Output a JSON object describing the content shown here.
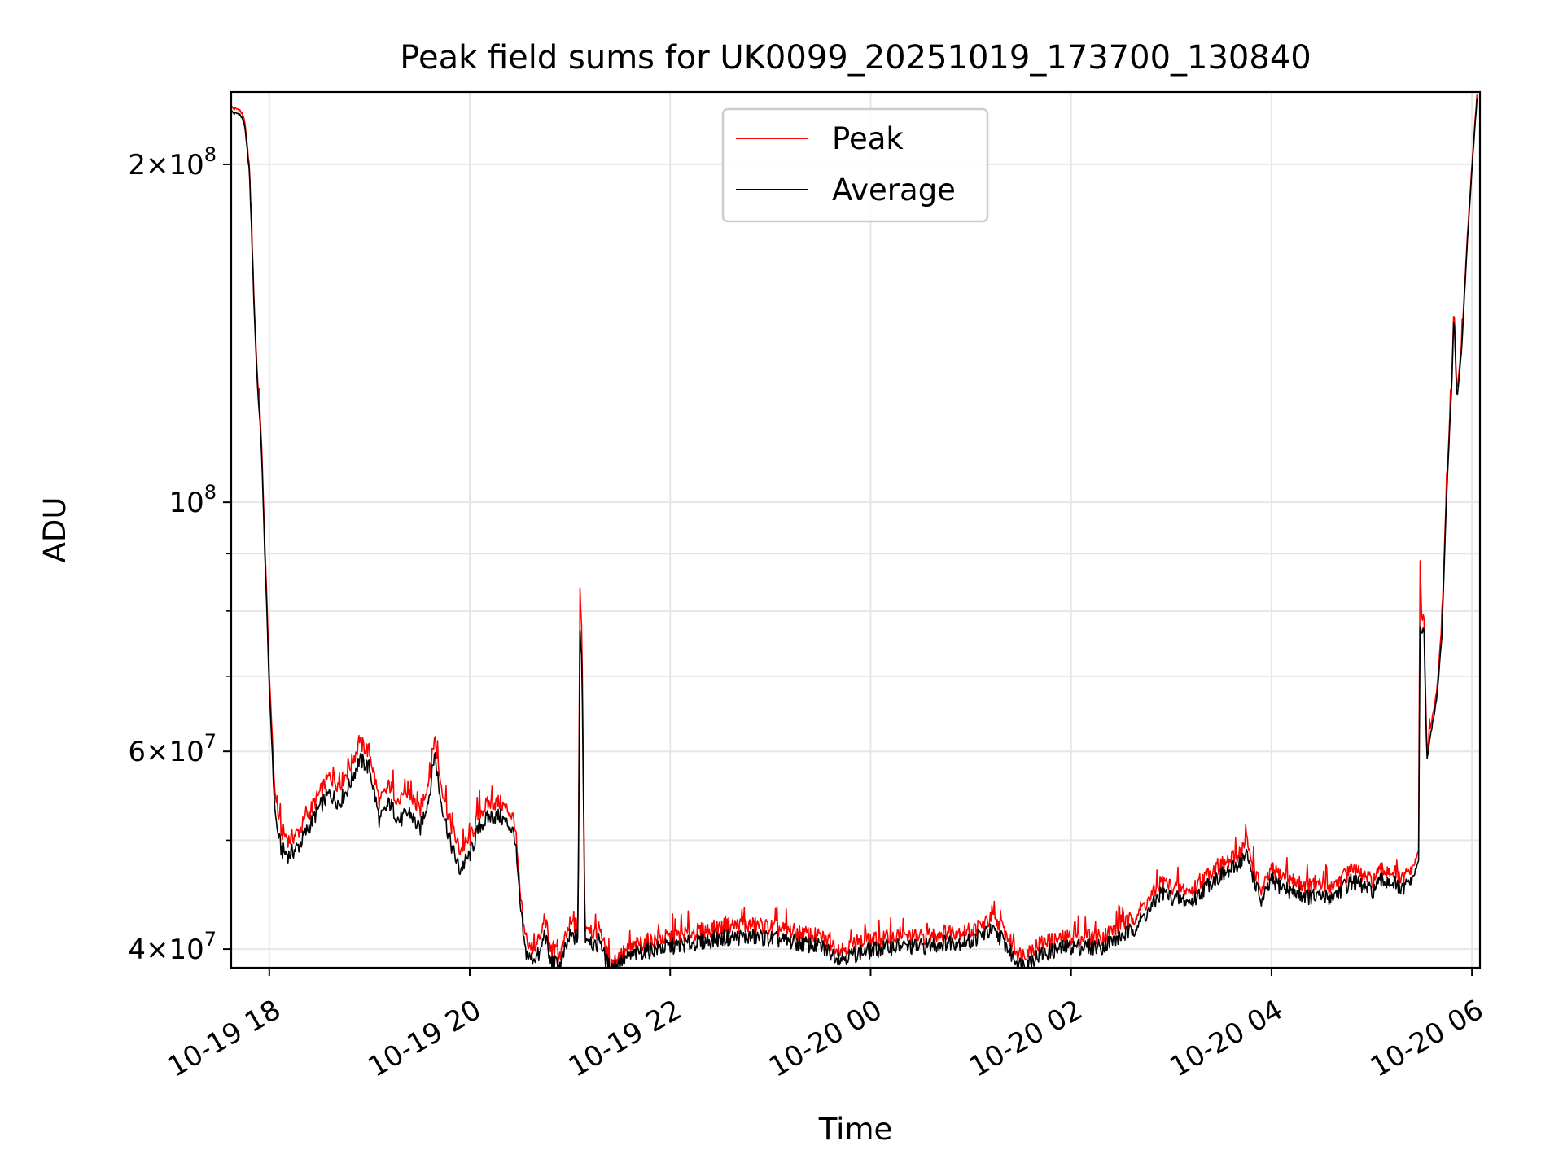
{
  "chart_data": {
    "type": "line",
    "title": "Peak field sums for UK0099_20251019_173700_130840",
    "xlabel": "Time",
    "ylabel": "ADU",
    "yscale": "log",
    "ylim": [
      38500000,
      232000000
    ],
    "xlim_hours": [
      17.62,
      30.08
    ],
    "x_unit": "hours since 2025-10-19 00:00",
    "grid": true,
    "legend_position": "upper-center",
    "x_ticks": [
      {
        "hour": 18,
        "label": "10-19 18"
      },
      {
        "hour": 20,
        "label": "10-19 20"
      },
      {
        "hour": 22,
        "label": "10-19 22"
      },
      {
        "hour": 24,
        "label": "10-20 00"
      },
      {
        "hour": 26,
        "label": "10-20 02"
      },
      {
        "hour": 28,
        "label": "10-20 04"
      },
      {
        "hour": 30,
        "label": "10-20 06"
      }
    ],
    "y_major_ticks": [
      {
        "value": 40000000,
        "base": "4",
        "exp": "7"
      },
      {
        "value": 60000000,
        "base": "6",
        "exp": "7"
      },
      {
        "value": 100000000,
        "base": "",
        "exp": "8"
      },
      {
        "value": 200000000,
        "base": "2",
        "exp": "8"
      }
    ],
    "y_minor_ticks": [
      50000000,
      70000000,
      80000000,
      90000000
    ],
    "series": [
      {
        "name": "Peak",
        "color": "#ff0000",
        "x": [
          17.62,
          17.65,
          17.7,
          17.75,
          17.8,
          17.82,
          17.85,
          17.88,
          17.92,
          17.95,
          17.98,
          18.0,
          18.03,
          18.05,
          18.08,
          18.12,
          18.2,
          18.3,
          18.4,
          18.5,
          18.6,
          18.7,
          18.8,
          18.9,
          19.0,
          19.05,
          19.1,
          19.2,
          19.3,
          19.4,
          19.5,
          19.6,
          19.65,
          19.7,
          19.8,
          19.9,
          20.0,
          20.1,
          20.2,
          20.3,
          20.4,
          20.45,
          20.5,
          20.55,
          20.6,
          20.7,
          20.75,
          20.8,
          20.9,
          21.0,
          21.08,
          21.1,
          21.12,
          21.15,
          21.2,
          21.25,
          21.3,
          21.35,
          21.4,
          21.5,
          21.7,
          22.0,
          22.3,
          22.6,
          22.9,
          23.2,
          23.5,
          23.7,
          23.9,
          24.2,
          24.5,
          24.8,
          25.0,
          25.1,
          25.2,
          25.3,
          25.4,
          25.5,
          25.7,
          26.0,
          26.3,
          26.6,
          26.8,
          26.9,
          27.0,
          27.2,
          27.4,
          27.6,
          27.7,
          27.75,
          27.8,
          27.9,
          28.0,
          28.2,
          28.4,
          28.6,
          28.8,
          29.0,
          29.1,
          29.2,
          29.3,
          29.42,
          29.47,
          29.48,
          29.5,
          29.52,
          29.55,
          29.6,
          29.65,
          29.7,
          29.75,
          29.8,
          29.82,
          29.85,
          29.9,
          29.95,
          30.0,
          30.05
        ],
        "y": [
          225000000,
          224000000,
          224000000,
          220000000,
          200000000,
          180000000,
          150000000,
          130000000,
          115000000,
          95000000,
          80000000,
          70000000,
          62000000,
          56000000,
          53000000,
          51000000,
          50000000,
          51000000,
          53000000,
          55000000,
          57000000,
          56000000,
          58000000,
          61000000,
          60000000,
          57000000,
          54000000,
          56000000,
          54000000,
          55000000,
          53000000,
          57000000,
          62000000,
          57000000,
          52000000,
          49000000,
          50000000,
          53000000,
          54000000,
          54000000,
          53000000,
          52000000,
          45000000,
          41000000,
          40000000,
          40500000,
          43000000,
          40000000,
          39500000,
          42000000,
          42000000,
          83000000,
          76000000,
          42000000,
          42000000,
          41000000,
          42000000,
          40000000,
          38800000,
          39500000,
          40500000,
          41000000,
          41500000,
          42000000,
          42000000,
          41500000,
          41000000,
          40000000,
          40500000,
          41000000,
          41000000,
          41500000,
          41500000,
          42000000,
          42500000,
          42000000,
          40500000,
          39500000,
          40500000,
          41000000,
          41000000,
          42500000,
          44500000,
          46000000,
          45500000,
          45000000,
          47000000,
          48000000,
          49000000,
          50000000,
          48000000,
          45000000,
          47000000,
          46000000,
          45500000,
          45500000,
          47000000,
          46000000,
          47000000,
          47000000,
          46000000,
          47500000,
          49000000,
          91000000,
          78000000,
          80000000,
          60000000,
          64000000,
          68000000,
          78000000,
          105000000,
          130000000,
          150000000,
          125000000,
          140000000,
          170000000,
          200000000,
          230000000
        ]
      },
      {
        "name": "Average",
        "color": "#000000",
        "x": [
          17.62,
          17.65,
          17.7,
          17.75,
          17.8,
          17.82,
          17.85,
          17.88,
          17.92,
          17.95,
          17.98,
          18.0,
          18.03,
          18.05,
          18.08,
          18.12,
          18.2,
          18.3,
          18.4,
          18.5,
          18.6,
          18.7,
          18.8,
          18.9,
          19.0,
          19.05,
          19.1,
          19.2,
          19.3,
          19.4,
          19.5,
          19.6,
          19.65,
          19.7,
          19.8,
          19.9,
          20.0,
          20.1,
          20.2,
          20.3,
          20.4,
          20.45,
          20.5,
          20.55,
          20.6,
          20.7,
          20.75,
          20.8,
          20.9,
          21.0,
          21.08,
          21.1,
          21.12,
          21.15,
          21.2,
          21.25,
          21.3,
          21.35,
          21.4,
          21.5,
          21.7,
          22.0,
          22.3,
          22.6,
          22.9,
          23.2,
          23.5,
          23.7,
          23.9,
          24.2,
          24.5,
          24.8,
          25.0,
          25.1,
          25.2,
          25.3,
          25.4,
          25.5,
          25.7,
          26.0,
          26.3,
          26.6,
          26.8,
          26.9,
          27.0,
          27.2,
          27.4,
          27.6,
          27.7,
          27.75,
          27.8,
          27.9,
          28.0,
          28.2,
          28.4,
          28.6,
          28.8,
          29.0,
          29.1,
          29.2,
          29.3,
          29.42,
          29.47,
          29.48,
          29.5,
          29.52,
          29.55,
          29.6,
          29.65,
          29.7,
          29.75,
          29.8,
          29.82,
          29.85,
          29.9,
          29.95,
          30.0,
          30.05
        ],
        "y": [
          223000000,
          222000000,
          222000000,
          218000000,
          198000000,
          178000000,
          148000000,
          128000000,
          113000000,
          93000000,
          78000000,
          68000000,
          60000000,
          54000000,
          51000000,
          49000000,
          48500000,
          49500000,
          51500000,
          53500000,
          55000000,
          54000000,
          56000000,
          59000000,
          58000000,
          55000000,
          52000000,
          54000000,
          52000000,
          53000000,
          51000000,
          55000000,
          60000000,
          55000000,
          50000000,
          47000000,
          48500000,
          51500000,
          52500000,
          52500000,
          51500000,
          50500000,
          44000000,
          40000000,
          39200000,
          39500000,
          41500000,
          39000000,
          38700000,
          41000000,
          41000000,
          76000000,
          72000000,
          41000000,
          41000000,
          40000000,
          41000000,
          39200000,
          38500000,
          39000000,
          39800000,
          40200000,
          40600000,
          41000000,
          41000000,
          40600000,
          40200000,
          39300000,
          39700000,
          40200000,
          40200000,
          40600000,
          40600000,
          41200000,
          41500000,
          41000000,
          39600000,
          38700000,
          39600000,
          40200000,
          40200000,
          41500000,
          43500000,
          45000000,
          44500000,
          44000000,
          46000000,
          47000000,
          48000000,
          48500000,
          47000000,
          44000000,
          46000000,
          45000000,
          44500000,
          44500000,
          46000000,
          45000000,
          46000000,
          46000000,
          45000000,
          46500000,
          48000000,
          78000000,
          76000000,
          78000000,
          59000000,
          63000000,
          67000000,
          76000000,
          103000000,
          128000000,
          148000000,
          123000000,
          138000000,
          168000000,
          198000000,
          228000000
        ]
      }
    ]
  }
}
